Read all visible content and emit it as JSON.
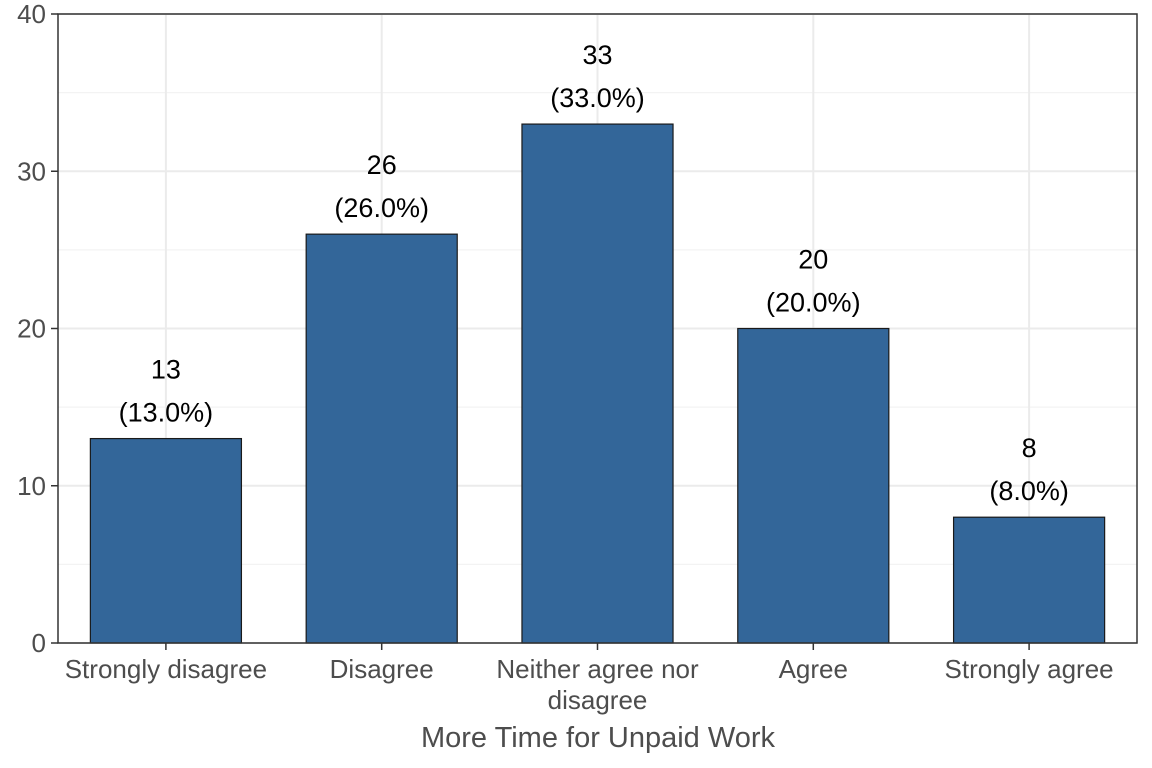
{
  "chart_data": {
    "type": "bar",
    "categories": [
      "Strongly disagree",
      "Disagree",
      "Neither agree nor disagree",
      "Agree",
      "Strongly agree"
    ],
    "category_label_lines": [
      [
        "Strongly disagree"
      ],
      [
        "Disagree"
      ],
      [
        "Neither agree nor",
        "disagree"
      ],
      [
        "Agree"
      ],
      [
        "Strongly agree"
      ]
    ],
    "values": [
      13,
      26,
      33,
      20,
      8
    ],
    "count_labels": [
      "13",
      "26",
      "33",
      "20",
      "8"
    ],
    "percent_labels": [
      "(13.0%)",
      "(26.0%)",
      "(33.0%)",
      "(20.0%)",
      "(8.0%)"
    ],
    "title": "",
    "xlabel": "More Time for Unpaid Work",
    "ylabel": "",
    "ylim": [
      0,
      40
    ],
    "yticks": [
      0,
      10,
      20,
      30,
      40
    ],
    "ytick_labels": [
      "0",
      "10",
      "20",
      "30",
      "40"
    ],
    "grid": true,
    "legend": "none",
    "colors": {
      "bar": "#336699",
      "bar_outline": "#1a1a1a",
      "grid": "#ebebeb",
      "panel_border": "#333333"
    }
  }
}
